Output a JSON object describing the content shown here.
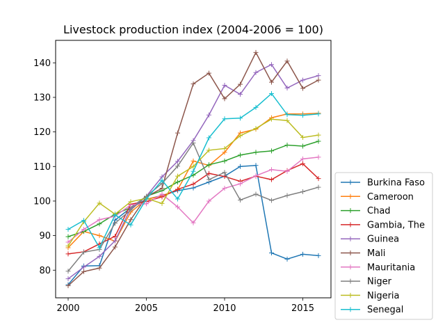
{
  "chart_data": {
    "type": "line",
    "title": "Livestock production index (2004-2006 = 100)",
    "xlabel": "",
    "ylabel": "",
    "x": [
      2000,
      2001,
      2002,
      2003,
      2004,
      2005,
      2006,
      2007,
      2008,
      2009,
      2010,
      2011,
      2012,
      2013,
      2014,
      2015,
      2016
    ],
    "xlim": [
      1999.2,
      2016.8
    ],
    "ylim": [
      72,
      146.5
    ],
    "xticks": [
      2000,
      2005,
      2010,
      2015
    ],
    "yticks": [
      80,
      90,
      100,
      110,
      120,
      130,
      140
    ],
    "grid": false,
    "legend_position": "outside-right-bottom",
    "series": [
      {
        "name": "Burkina Faso",
        "color": "#1f77b4",
        "values": [
          75.8,
          81.2,
          81.3,
          94.5,
          98.0,
          100.5,
          101.6,
          103.0,
          103.8,
          105.5,
          107.2,
          110.0,
          110.3,
          85.0,
          83.2,
          84.6,
          84.2
        ]
      },
      {
        "name": "Cameroon",
        "color": "#ff7f0e",
        "values": [
          86.5,
          91.2,
          90.0,
          88.4,
          96.8,
          100.5,
          101.5,
          103.3,
          111.6,
          110.3,
          114.1,
          119.7,
          120.8,
          124.1,
          125.2,
          125.2,
          125.4
        ]
      },
      {
        "name": "Chad",
        "color": "#2ca02c",
        "values": [
          89.7,
          91.2,
          93.4,
          96.2,
          98.1,
          101.4,
          103.0,
          105.5,
          107.5,
          110.5,
          111.6,
          113.3,
          114.1,
          114.5,
          116.2,
          115.9,
          117.3
        ]
      },
      {
        "name": "Gambia, The",
        "color": "#d62728",
        "values": [
          84.7,
          85.3,
          87.6,
          89.8,
          99.1,
          99.9,
          101.2,
          103.4,
          104.9,
          108.0,
          107.1,
          105.7,
          107.2,
          106.2,
          108.8,
          110.8,
          106.5
        ]
      },
      {
        "name": "Guinea",
        "color": "#9467bd",
        "values": [
          77.5,
          80.9,
          84.0,
          88.5,
          97.9,
          101.4,
          107.0,
          111.5,
          117.5,
          124.9,
          133.5,
          130.9,
          137.2,
          139.5,
          132.7,
          135.0,
          136.3
        ]
      },
      {
        "name": "Mali",
        "color": "#8c564b",
        "values": [
          75.5,
          79.6,
          80.6,
          86.7,
          94.6,
          101.2,
          103.7,
          119.7,
          133.9,
          137.0,
          129.6,
          133.8,
          143.0,
          134.4,
          140.5,
          132.6,
          135.0
        ]
      },
      {
        "name": "Mauritania",
        "color": "#e377c2",
        "values": [
          88.1,
          91.8,
          94.6,
          95.6,
          98.9,
          99.2,
          102.0,
          98.3,
          93.7,
          100.0,
          103.7,
          105.0,
          107.3,
          109.1,
          108.6,
          112.2,
          112.7
        ]
      },
      {
        "name": "Niger",
        "color": "#7f7f7f",
        "values": [
          79.7,
          85.2,
          86.0,
          93.6,
          97.4,
          101.4,
          105.1,
          110.1,
          116.8,
          106.2,
          108.3,
          100.3,
          102.0,
          100.2,
          101.6,
          102.7,
          104.0
        ]
      },
      {
        "name": "Nigeria",
        "color": "#bcbd22",
        "values": [
          87.0,
          94.0,
          99.4,
          96.2,
          99.8,
          100.8,
          99.3,
          107.2,
          110.0,
          114.7,
          115.2,
          118.9,
          121.0,
          123.7,
          123.3,
          118.4,
          119.1
        ]
      },
      {
        "name": "Senegal",
        "color": "#17becf",
        "values": [
          91.8,
          94.4,
          86.5,
          96.0,
          93.1,
          100.6,
          106.0,
          100.6,
          108.6,
          118.3,
          123.8,
          124.0,
          127.1,
          131.1,
          125.0,
          124.8,
          125.2
        ]
      }
    ]
  }
}
